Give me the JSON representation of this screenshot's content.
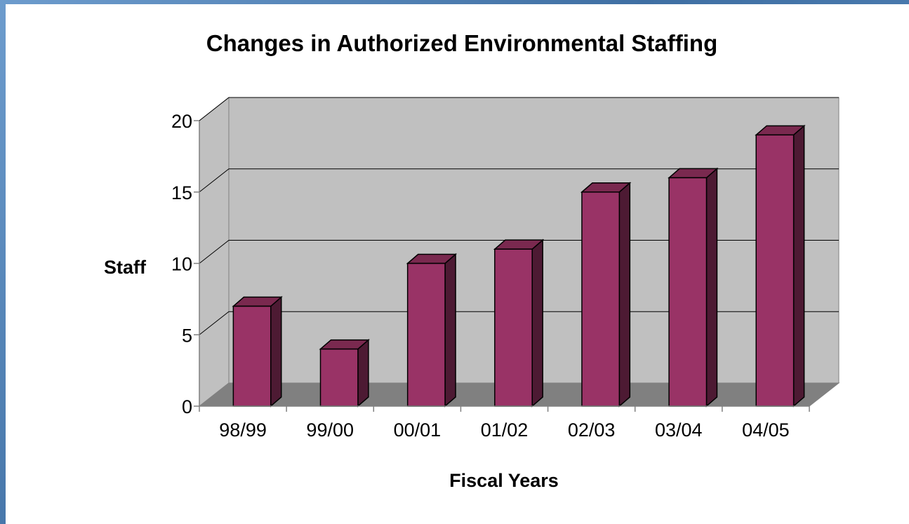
{
  "chart_data": {
    "type": "bar",
    "title": "Changes in Authorized Environmental Staffing",
    "xlabel": "Fiscal Years",
    "ylabel": "Staff",
    "categories": [
      "98/99",
      "99/00",
      "00/01",
      "01/02",
      "02/03",
      "03/04",
      "04/05"
    ],
    "values": [
      7,
      4,
      10,
      11,
      15,
      16,
      19
    ],
    "ylim": [
      0,
      20
    ],
    "yticks": [
      0,
      5,
      10,
      15,
      20
    ],
    "grid": true,
    "legend": "none",
    "style": "3d-column",
    "colors": {
      "bar_front": "#993366",
      "bar_top": "#7a294f",
      "bar_side": "#4d1a33",
      "wall": "#c0c0c0",
      "floor": "#808080"
    }
  }
}
